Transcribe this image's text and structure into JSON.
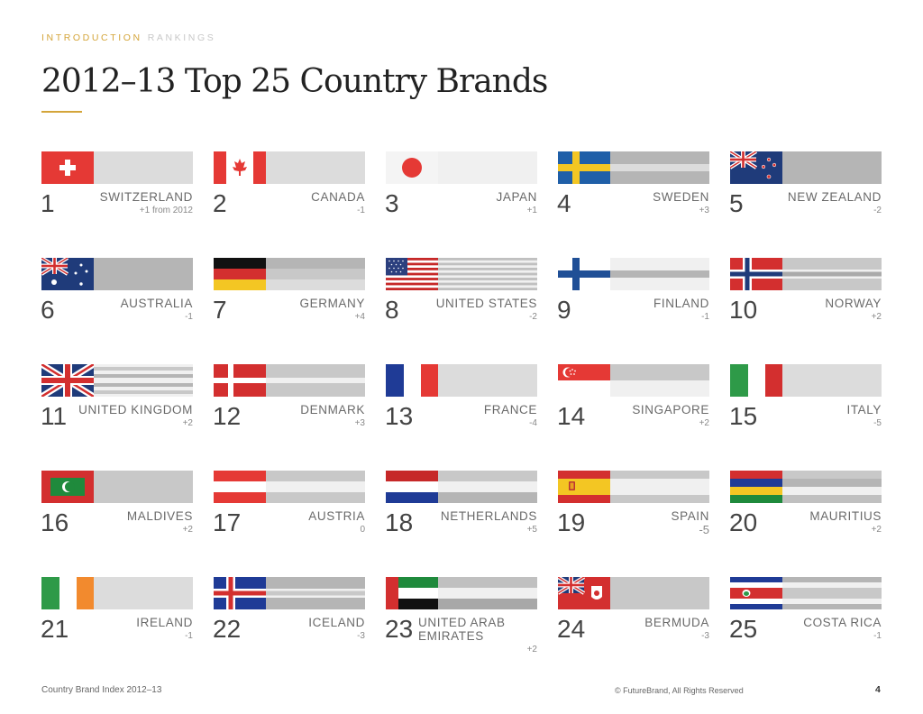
{
  "header": {
    "section": "INTRODUCTION",
    "subsection": "RANKINGS",
    "title": "2012–13 Top 25 Country Brands"
  },
  "rankings": [
    {
      "rank": "1",
      "country": "SWITZERLAND",
      "change": "+1 from 2012"
    },
    {
      "rank": "2",
      "country": "CANADA",
      "change": "-1"
    },
    {
      "rank": "3",
      "country": "JAPAN",
      "change": "+1"
    },
    {
      "rank": "4",
      "country": "SWEDEN",
      "change": "+3"
    },
    {
      "rank": "5",
      "country": "NEW ZEALAND",
      "change": "-2"
    },
    {
      "rank": "6",
      "country": "AUSTRALIA",
      "change": "-1"
    },
    {
      "rank": "7",
      "country": "GERMANY",
      "change": "+4"
    },
    {
      "rank": "8",
      "country": "UNITED STATES",
      "change": "-2"
    },
    {
      "rank": "9",
      "country": "FINLAND",
      "change": "-1"
    },
    {
      "rank": "10",
      "country": "NORWAY",
      "change": "+2"
    },
    {
      "rank": "11",
      "country": "UNITED KINGDOM",
      "change": "+2"
    },
    {
      "rank": "12",
      "country": "DENMARK",
      "change": "+3"
    },
    {
      "rank": "13",
      "country": "FRANCE",
      "change": "-4"
    },
    {
      "rank": "14",
      "country": "SINGAPORE",
      "change": "+2"
    },
    {
      "rank": "15",
      "country": "ITALY",
      "change": "-5"
    },
    {
      "rank": "16",
      "country": "MALDIVES",
      "change": "+2"
    },
    {
      "rank": "17",
      "country": "AUSTRIA",
      "change": "0"
    },
    {
      "rank": "18",
      "country": "NETHERLANDS",
      "change": "+5"
    },
    {
      "rank": "19",
      "country": "SPAIN",
      "change": "-5"
    },
    {
      "rank": "20",
      "country": "MAURITIUS",
      "change": "+2"
    },
    {
      "rank": "21",
      "country": "IRELAND",
      "change": "-1"
    },
    {
      "rank": "22",
      "country": "ICELAND",
      "change": "-3"
    },
    {
      "rank": "23",
      "country": "UNITED ARAB EMIRATES",
      "change": "+2"
    },
    {
      "rank": "24",
      "country": "BERMUDA",
      "change": "-3"
    },
    {
      "rank": "25",
      "country": "COSTA RICA",
      "change": "-1"
    }
  ],
  "footer": {
    "source": "Country Brand Index 2012–13",
    "copyright": "© FutureBrand, All Rights Reserved",
    "page": "4"
  },
  "colors": {
    "accent": "#d4a53a",
    "bar_dark": "#b5b5b5",
    "bar_light": "#dcdcdc"
  }
}
